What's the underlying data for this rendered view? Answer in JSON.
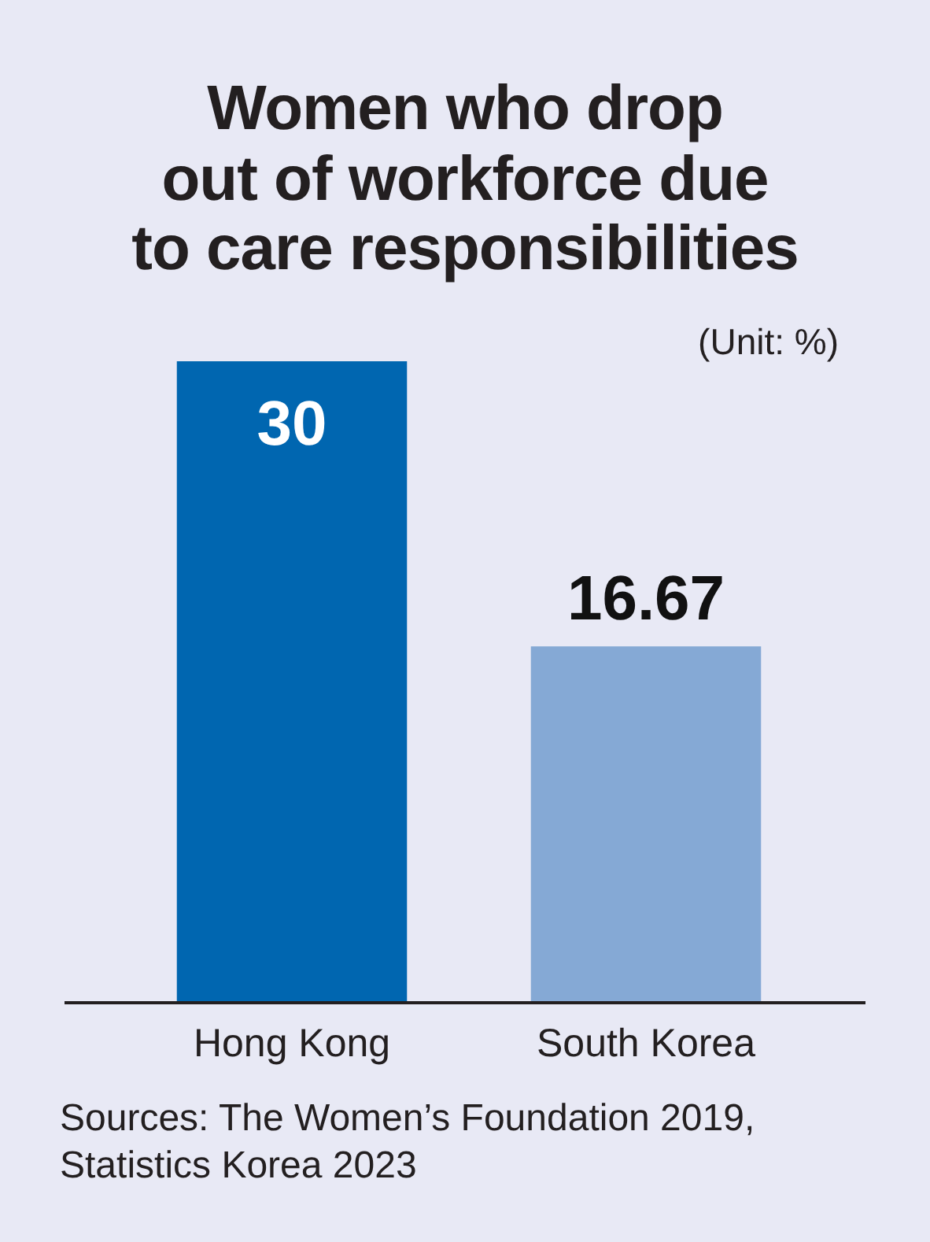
{
  "chart_data": {
    "type": "bar",
    "title": "Women who drop\nout of workforce due\nto care responsibilities",
    "categories": [
      "Hong Kong",
      "South Korea"
    ],
    "values": [
      30,
      16.67
    ],
    "colors": [
      "#0066b0",
      "#85a9d5"
    ],
    "data_labels": true,
    "annotations": [
      "(Unit: %)",
      "Sources: The Women’s Foundation 2019, Statistics Korea 2023"
    ]
  }
}
